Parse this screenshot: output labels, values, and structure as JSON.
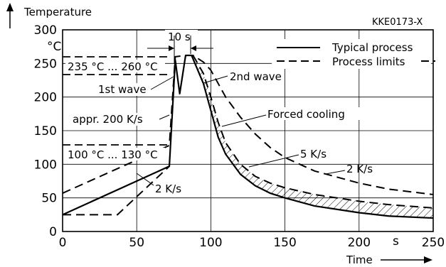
{
  "chart_data": {
    "type": "line",
    "title": "",
    "xlabel": "Time",
    "xunit": "s",
    "ylabel": "Temperature",
    "yunit": "°C",
    "code": "KKE0173-X",
    "xlim": [
      0,
      250
    ],
    "ylim": [
      0,
      300
    ],
    "xticks": [
      0,
      50,
      100,
      150,
      200,
      250
    ],
    "yticks": [
      0,
      50,
      100,
      150,
      200,
      250,
      300
    ],
    "grid": true,
    "legend": {
      "position": "top-right",
      "entries": [
        {
          "label": "Typical process",
          "style": "solid"
        },
        {
          "label": "Process limits",
          "style": "dashed"
        }
      ]
    },
    "annotations": {
      "wave_time": "10 s",
      "band_high": "235 °C ... 260 °C",
      "band_low": "100 °C ... 130 °C",
      "first_wave": "1st wave",
      "second_wave": "2nd wave",
      "ramp_rate": "appr. 200 K/s",
      "forced_cooling": "Forced cooling",
      "preheat_rate": "2 K/s",
      "cool_fast": "5 K/s",
      "cool_slow": "2 K/s"
    },
    "series": [
      {
        "name": "Typical process",
        "style": "solid",
        "points": [
          [
            0,
            25
          ],
          [
            72,
            97
          ],
          [
            76,
            255
          ],
          [
            79,
            205
          ],
          [
            83,
            262
          ],
          [
            87,
            262
          ],
          [
            95,
            220
          ],
          [
            100,
            180
          ],
          [
            105,
            140
          ],
          [
            110,
            115
          ],
          [
            120,
            85
          ],
          [
            130,
            68
          ],
          [
            140,
            57
          ],
          [
            150,
            50
          ],
          [
            170,
            38
          ],
          [
            200,
            28
          ],
          [
            220,
            23
          ],
          [
            250,
            20
          ]
        ]
      },
      {
        "name": "Process limits (upper)",
        "style": "dashed",
        "points": [
          [
            0,
            57
          ],
          [
            72,
            128
          ],
          [
            76,
            260
          ],
          [
            84,
            262
          ],
          [
            88,
            262
          ],
          [
            95,
            252
          ],
          [
            100,
            240
          ],
          [
            110,
            200
          ],
          [
            120,
            170
          ],
          [
            130,
            145
          ],
          [
            140,
            125
          ],
          [
            150,
            110
          ],
          [
            170,
            90
          ],
          [
            200,
            72
          ],
          [
            220,
            63
          ],
          [
            250,
            55
          ]
        ]
      },
      {
        "name": "Process limits (lower)",
        "style": "dashed",
        "points": [
          [
            0,
            25
          ],
          [
            37,
            25
          ],
          [
            72,
            97
          ]
        ]
      },
      {
        "name": "Forced cooling (upper)",
        "style": "dashed",
        "points": [
          [
            88,
            262
          ],
          [
            95,
            235
          ],
          [
            100,
            200
          ],
          [
            105,
            162
          ],
          [
            110,
            132
          ],
          [
            120,
            100
          ],
          [
            130,
            82
          ],
          [
            140,
            72
          ],
          [
            150,
            65
          ],
          [
            170,
            55
          ],
          [
            200,
            45
          ],
          [
            220,
            40
          ],
          [
            250,
            35
          ]
        ]
      }
    ]
  }
}
